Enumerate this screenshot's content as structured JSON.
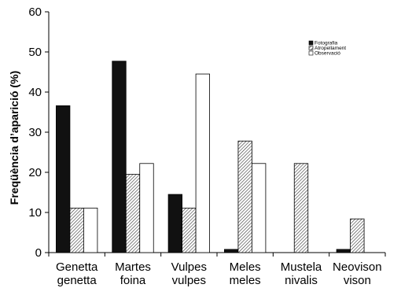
{
  "chart_data": {
    "type": "bar",
    "title": "",
    "xlabel": "",
    "ylabel": "Freqüència d’aparició (%)",
    "ylim": [
      0,
      60
    ],
    "yticks": [
      0,
      10,
      20,
      30,
      40,
      50,
      60
    ],
    "grid": false,
    "legend_position": "top-right",
    "categories": [
      [
        "Genetta",
        "genetta"
      ],
      [
        "Martes",
        "foina"
      ],
      [
        "Vulpes",
        "vulpes"
      ],
      [
        "Meles",
        "meles"
      ],
      [
        "Mustela",
        "nivalis"
      ],
      [
        "Neovison",
        "vison"
      ]
    ],
    "series": [
      {
        "name": "Fotografia",
        "fill": "#111111",
        "pattern": "solid",
        "values": [
          36.6,
          47.7,
          14.5,
          0.8,
          0,
          0.8
        ]
      },
      {
        "name": "Atropellament",
        "fill": "#ffffff",
        "pattern": "hatch",
        "values": [
          11.1,
          19.5,
          11.1,
          27.8,
          22.2,
          8.4
        ]
      },
      {
        "name": "Observació",
        "fill": "#ffffff",
        "pattern": "none",
        "values": [
          11.1,
          22.2,
          44.5,
          22.2,
          0,
          0
        ]
      }
    ]
  }
}
